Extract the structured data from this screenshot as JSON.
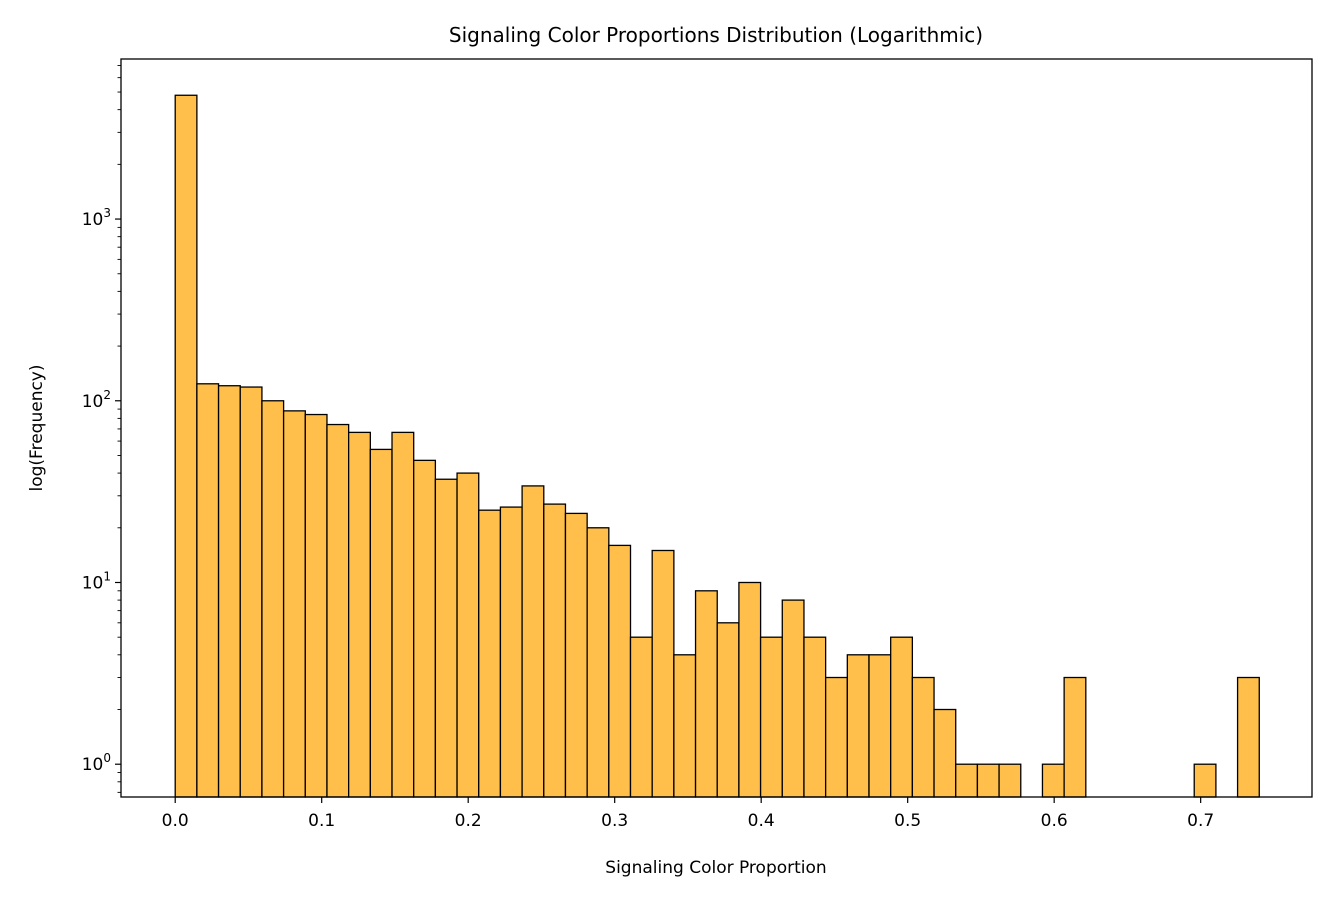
{
  "chart_data": {
    "type": "bar",
    "title": "Signaling Color Proportions Distribution (Logarithmic)",
    "xlabel": "Signaling Color Proportion",
    "ylabel": "log(Frequency)",
    "yscale": "log",
    "xlim": [
      -0.037,
      0.776
    ],
    "ylim": [
      0.66,
      7600
    ],
    "bin_width": 0.0148,
    "bin_starts": [
      0.0,
      0.0148,
      0.0296,
      0.0444,
      0.0592,
      0.074,
      0.0888,
      0.1036,
      0.1184,
      0.1332,
      0.148,
      0.1628,
      0.1776,
      0.1924,
      0.2072,
      0.222,
      0.2368,
      0.2516,
      0.2664,
      0.2812,
      0.296,
      0.3108,
      0.3256,
      0.3404,
      0.3552,
      0.37,
      0.3848,
      0.3996,
      0.4144,
      0.4292,
      0.444,
      0.4588,
      0.4736,
      0.4884,
      0.5032,
      0.518,
      0.5328,
      0.5476,
      0.5624,
      0.5772,
      0.592,
      0.6068,
      0.6216,
      0.6364,
      0.6512,
      0.666,
      0.6808,
      0.6956,
      0.7104,
      0.7252
    ],
    "values": [
      4800,
      124,
      121,
      119,
      100,
      88,
      84,
      74,
      67,
      54,
      67,
      47,
      37,
      40,
      25,
      26,
      34,
      27,
      24,
      20,
      16,
      5,
      15,
      4,
      9,
      6,
      10,
      5,
      8,
      5,
      3,
      4,
      4,
      5,
      3,
      2,
      1,
      1,
      1,
      0,
      1,
      3,
      0,
      0,
      0,
      0,
      0,
      1,
      0,
      3
    ],
    "xticks": [
      0.0,
      0.1,
      0.2,
      0.3,
      0.4,
      0.5,
      0.6,
      0.7
    ],
    "xtick_labels": [
      "0.0",
      "0.1",
      "0.2",
      "0.3",
      "0.4",
      "0.5",
      "0.6",
      "0.7"
    ],
    "yticks": [
      1,
      10,
      100,
      1000
    ],
    "ytick_labels": [
      {
        "base": "10",
        "exp": "0"
      },
      {
        "base": "10",
        "exp": "1"
      },
      {
        "base": "10",
        "exp": "2"
      },
      {
        "base": "10",
        "exp": "3"
      }
    ],
    "bar_color": "#FFBF4A",
    "edge_color": "#000000",
    "grid": false,
    "legend": false
  }
}
